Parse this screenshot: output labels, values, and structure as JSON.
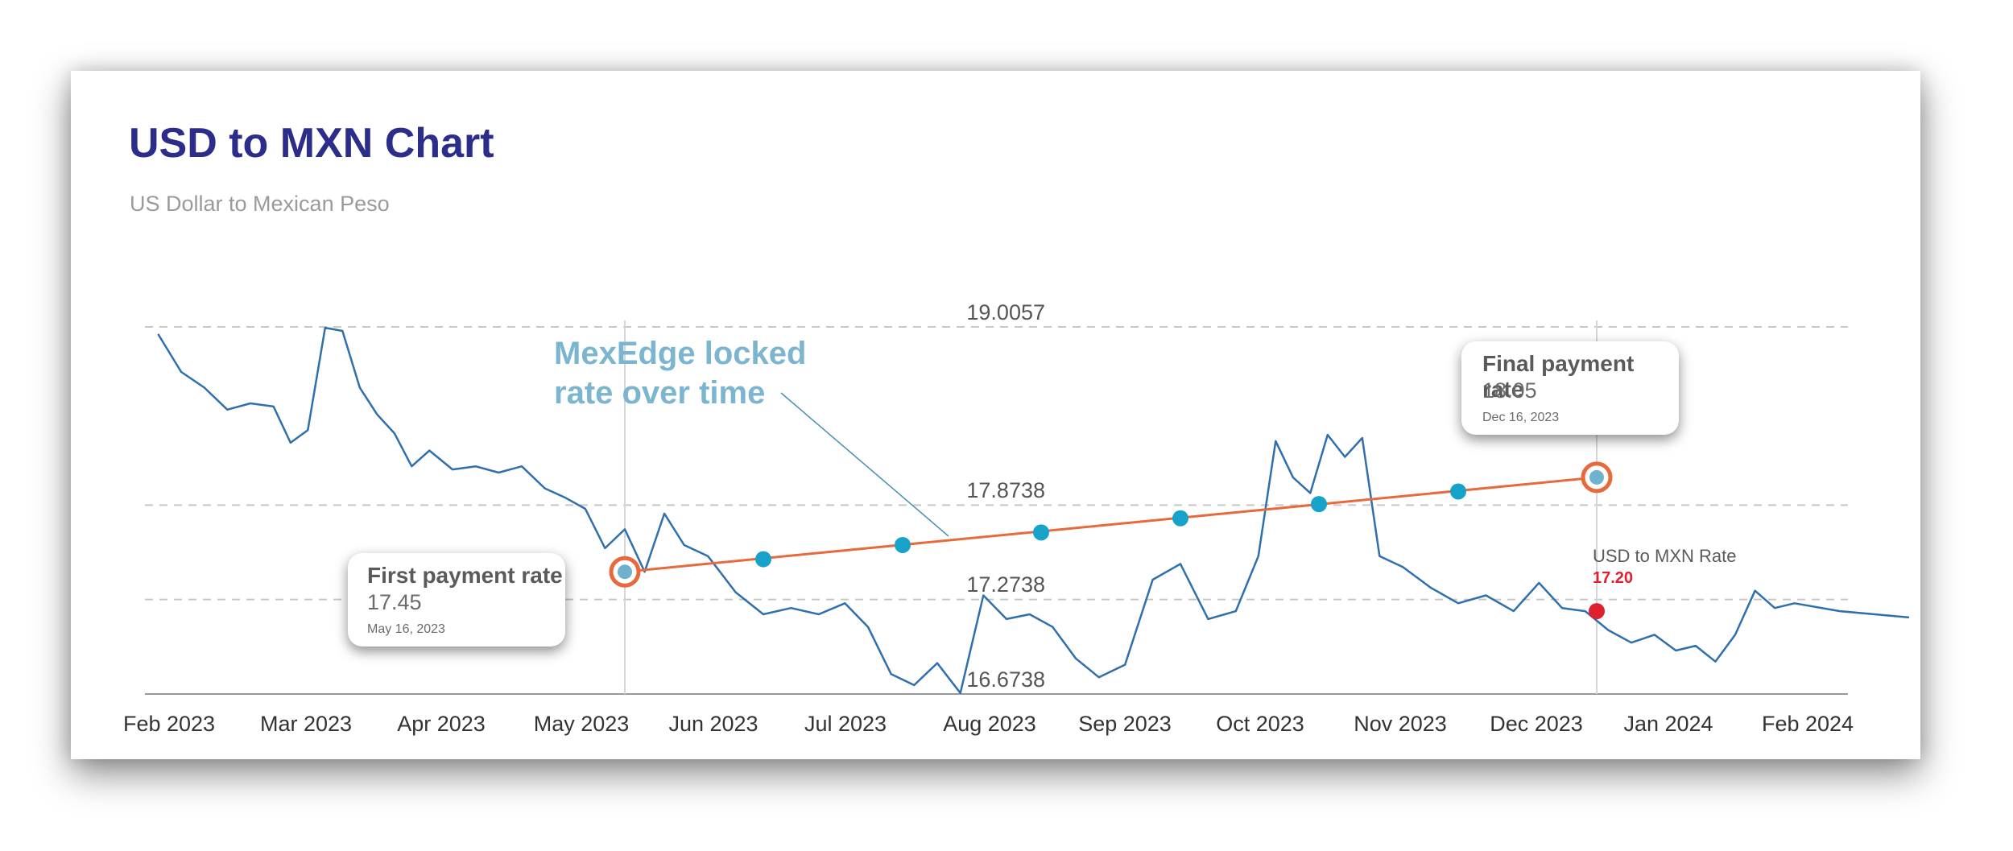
{
  "title": "USD to MXN Chart",
  "subtitle": "US Dollar to Mexican Peso",
  "annotation": {
    "line1": "MexEdge locked",
    "line2": "rate over time"
  },
  "first_callout": {
    "title": "First payment rate",
    "value": "17.45",
    "date": "May 16, 2023"
  },
  "final_callout": {
    "title": "Final payment rate",
    "value": "18.05",
    "date": "Dec 16, 2023"
  },
  "current_rate": {
    "label": "USD to MXN Rate",
    "value": "17.20"
  },
  "colors": {
    "rate_line": "#2f6fae",
    "locked_line": "#e8693c",
    "dots": "#17a2c9",
    "current": "#e0202f",
    "title": "#2c2d8a",
    "annotation": "#7cb5cf"
  },
  "chart_data": {
    "type": "line",
    "title": "USD to MXN Chart",
    "subtitle": "US Dollar to Mexican Peso",
    "ylim": [
      16.6738,
      19.0057
    ],
    "y_ticks": [
      "19.0057",
      "17.8738",
      "17.2738",
      "16.6738"
    ],
    "x_ticks": [
      "Feb 2023",
      "Mar 2023",
      "Apr 2023",
      "May 2023",
      "Jun 2023",
      "Jul 2023",
      "Aug 2023",
      "Sep 2023",
      "Oct 2023",
      "Nov 2023",
      "Dec 2023",
      "Jan 2024",
      "Feb 2024"
    ],
    "grid": "horizontal dashed",
    "series": [
      {
        "name": "USD to MXN Rate",
        "x": [
          "Feb 2023",
          "Feb 2023",
          "Feb 2023",
          "Feb 2023",
          "Feb 2023",
          "Feb 2023",
          "Mar 2023",
          "Mar 2023",
          "Mar 2023",
          "Mar 2023",
          "Mar 2023",
          "Mar 2023",
          "Mar 2023",
          "Mar 2023",
          "Apr 2023",
          "Apr 2023",
          "Apr 2023",
          "Apr 2023",
          "Apr 2023",
          "Apr 2023",
          "May 2023",
          "May 2023",
          "May 2023",
          "May 2023",
          "May 2023",
          "May 2023",
          "May 2023",
          "Jun 2023",
          "Jun 2023",
          "Jun 2023",
          "Jun 2023",
          "Jun 2023",
          "Jul 2023",
          "Jul 2023",
          "Jul 2023",
          "Jul 2023",
          "Jul 2023",
          "Jul 2023",
          "Aug 2023",
          "Aug 2023",
          "Aug 2023",
          "Aug 2023",
          "Aug 2023",
          "Aug 2023",
          "Sep 2023",
          "Sep 2023",
          "Sep 2023",
          "Sep 2023",
          "Sep 2023",
          "Oct 2023",
          "Oct 2023",
          "Oct 2023",
          "Oct 2023",
          "Oct 2023",
          "Oct 2023",
          "Oct 2023",
          "Oct 2023",
          "Nov 2023",
          "Nov 2023",
          "Nov 2023",
          "Nov 2023",
          "Nov 2023",
          "Dec 2023",
          "Dec 2023",
          "Dec 2023",
          "Dec 2023",
          "Dec 2023",
          "Dec 2023",
          "Jan 2024",
          "Jan 2024",
          "Jan 2024",
          "Jan 2024",
          "Jan 2024",
          "Jan 2024",
          "Jan 2024",
          "Feb 2024",
          "Feb 2024"
        ],
        "values": [
          18.96,
          18.72,
          18.62,
          18.48,
          18.52,
          18.5,
          18.27,
          18.35,
          19.0,
          18.98,
          18.62,
          18.45,
          18.33,
          18.12,
          18.22,
          18.1,
          18.12,
          18.08,
          18.12,
          17.98,
          17.92,
          17.85,
          17.6,
          17.72,
          17.45,
          17.82,
          17.62,
          17.55,
          17.32,
          17.18,
          17.22,
          17.18,
          17.25,
          17.1,
          16.8,
          16.73,
          16.87,
          16.68,
          17.3,
          17.15,
          17.18,
          17.1,
          16.9,
          16.78,
          16.86,
          17.4,
          17.5,
          17.15,
          17.2,
          17.55,
          18.28,
          18.05,
          17.95,
          18.32,
          18.18,
          18.3,
          17.55,
          17.48,
          17.35,
          17.25,
          17.3,
          17.2,
          17.38,
          17.22,
          17.2,
          17.08,
          17.0,
          17.05,
          16.95,
          16.98,
          16.88,
          17.05,
          17.33,
          17.22,
          17.25,
          17.2,
          17.16
        ]
      },
      {
        "name": "MexEdge locked rate over time",
        "x": [
          "May 16, 2023",
          "Jun 16, 2023",
          "Jul 16, 2023",
          "Aug 16, 2023",
          "Sep 16, 2023",
          "Oct 16, 2023",
          "Nov 16, 2023",
          "Dec 16, 2023"
        ],
        "values": [
          17.45,
          17.53,
          17.62,
          17.7,
          17.79,
          17.88,
          17.96,
          18.05
        ]
      }
    ],
    "highlights": [
      {
        "label": "First payment rate",
        "x": "May 16, 2023",
        "value": 17.45
      },
      {
        "label": "Final payment rate",
        "x": "Dec 16, 2023",
        "value": 18.05
      },
      {
        "label": "USD to MXN Rate",
        "x": "Dec 16, 2023",
        "value": 17.2
      }
    ]
  }
}
